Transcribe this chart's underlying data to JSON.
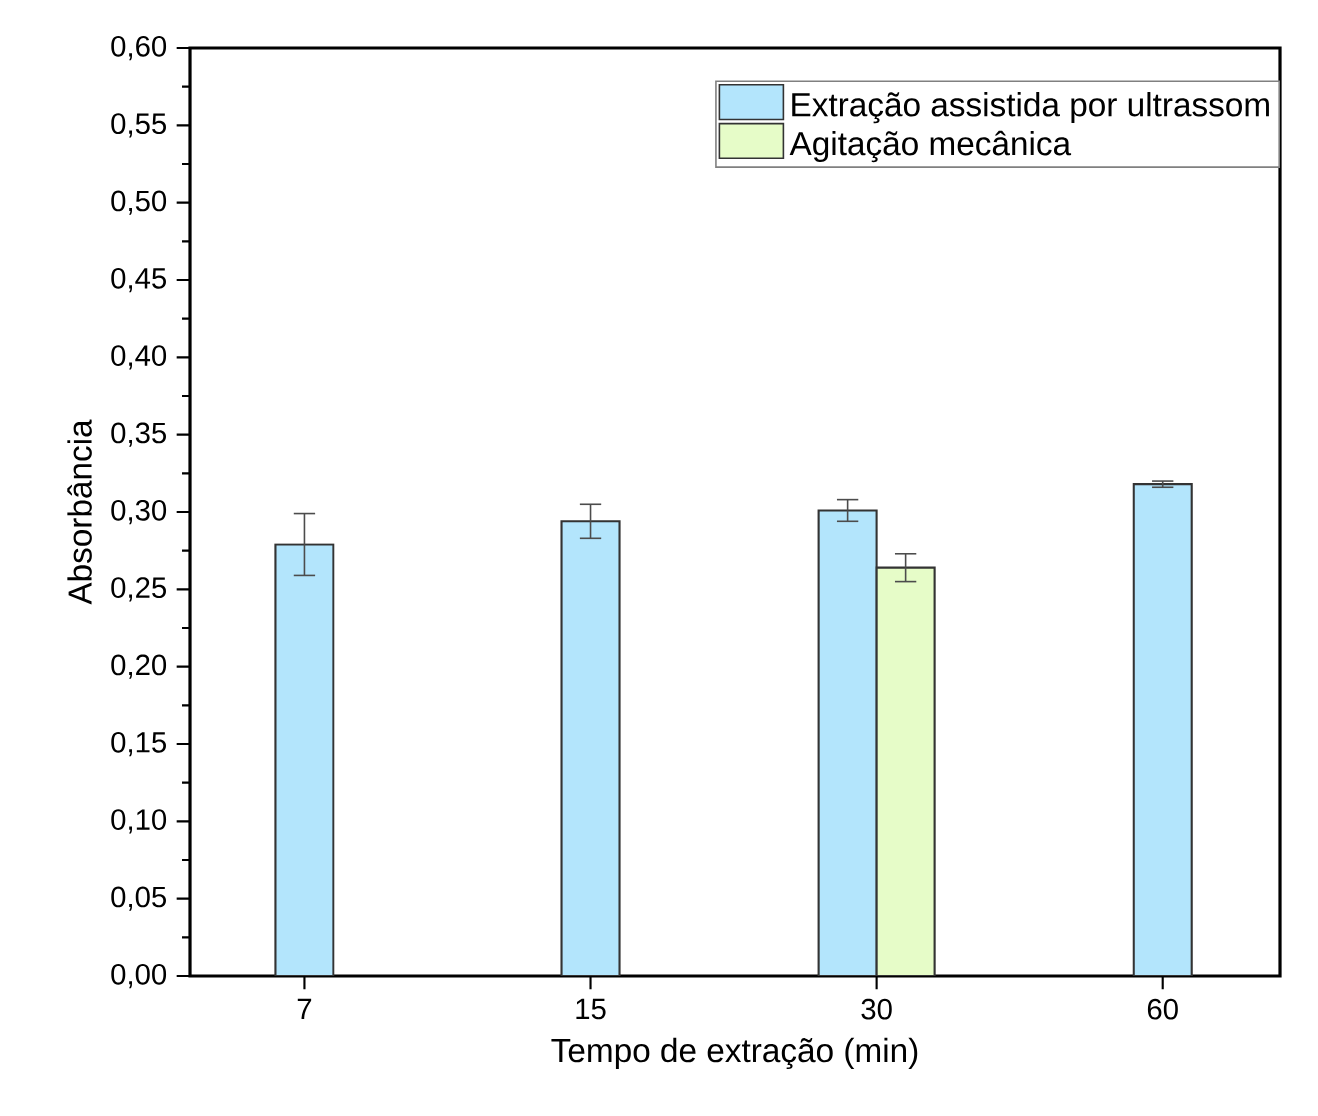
{
  "chart_data": {
    "type": "bar",
    "xlabel": "Tempo de extração (min)",
    "ylabel": "Absorbância",
    "categories": [
      "7",
      "15",
      "30",
      "60"
    ],
    "series": [
      {
        "name": "Extração assistida por ultrassom",
        "color": "#b3e5fc",
        "values": [
          0.279,
          0.294,
          0.301,
          0.318
        ],
        "errors": [
          0.02,
          0.011,
          0.007,
          0.002
        ]
      },
      {
        "name": "Agitação mecânica",
        "color": "#e6fcc8",
        "values": [
          null,
          null,
          0.264,
          null
        ],
        "errors": [
          null,
          null,
          0.009,
          null
        ]
      }
    ],
    "ylim": [
      0,
      0.6
    ],
    "yticks": [
      {
        "value": 0,
        "label": "0,00"
      },
      {
        "value": 0.05,
        "label": "0,05"
      },
      {
        "value": 0.1,
        "label": "0,10"
      },
      {
        "value": 0.15,
        "label": "0,15"
      },
      {
        "value": 0.2,
        "label": "0,20"
      },
      {
        "value": 0.25,
        "label": "0,25"
      },
      {
        "value": 0.3,
        "label": "0,30"
      },
      {
        "value": 0.35,
        "label": "0,35"
      },
      {
        "value": 0.4,
        "label": "0,40"
      },
      {
        "value": 0.45,
        "label": "0,45"
      },
      {
        "value": 0.5,
        "label": "0,50"
      },
      {
        "value": 0.55,
        "label": "0,55"
      },
      {
        "value": 0.6,
        "label": "0,60"
      }
    ],
    "legend": "top right"
  }
}
